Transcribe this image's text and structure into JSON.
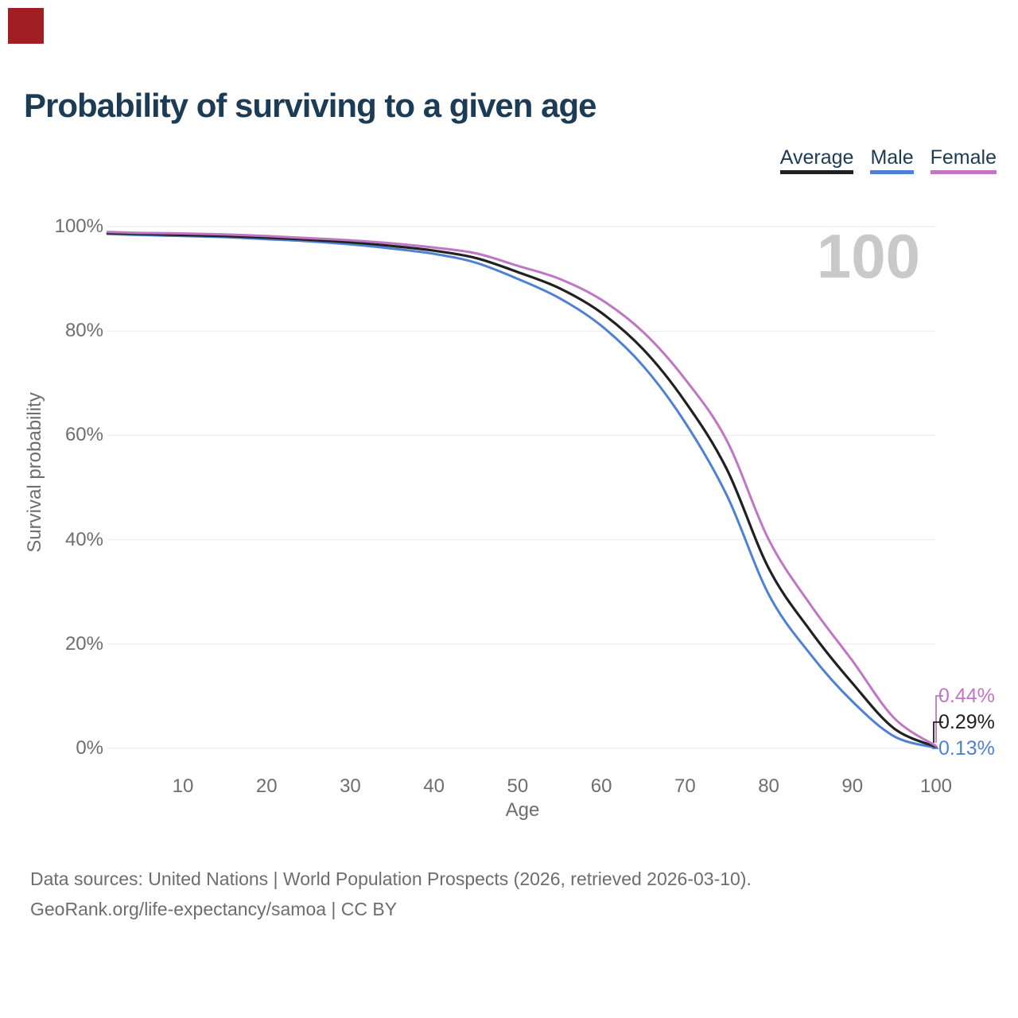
{
  "title": "Probability of surviving to a given age",
  "marker": {
    "color": "#a11e23"
  },
  "legend": {
    "items": [
      {
        "label": "Average",
        "color": "#212121"
      },
      {
        "label": "Male",
        "color": "#4f81d3"
      },
      {
        "label": "Female",
        "color": "#bf76c4"
      }
    ]
  },
  "watermark": "100",
  "footer": {
    "line1": "Data sources: United Nations | World Population Prospects (2026, retrieved 2026-03-10).",
    "line2": "GeoRank.org/life-expectancy/samoa | CC BY"
  },
  "colors": {
    "title_navy": "#1c3b55",
    "axis_gray": "#6e6e6e",
    "gridline": "#e9e9e9",
    "watermark_gray": "#c9c9c9",
    "average_line": "#212121",
    "male_line": "#4f81d3",
    "female_line": "#bf76c4"
  },
  "chart_data": {
    "type": "line",
    "title": "Probability of surviving to a given age",
    "xlabel": "Age",
    "ylabel": "Survival probability",
    "xlim": [
      1,
      100
    ],
    "ylim": [
      0,
      100
    ],
    "grid": "horizontal",
    "legend_position": "top-right",
    "x_tick_values": [
      10,
      20,
      30,
      40,
      50,
      60,
      70,
      80,
      90,
      100
    ],
    "y_tick_labels": [
      "100%",
      "80%",
      "60%",
      "40%",
      "20%",
      "0%"
    ],
    "ages": [
      1,
      5,
      10,
      15,
      20,
      25,
      30,
      35,
      40,
      45,
      50,
      55,
      60,
      65,
      70,
      75,
      80,
      85,
      90,
      95,
      100
    ],
    "series": [
      {
        "name": "Male",
        "color": "#4f81d3",
        "end_label": "0.13%",
        "values": [
          98.6,
          98.4,
          98.2,
          98.0,
          97.6,
          97.2,
          96.6,
          95.8,
          94.8,
          93.1,
          90.0,
          86.3,
          81.0,
          73.3,
          62.5,
          48.5,
          29.5,
          18.0,
          9.0,
          2.3,
          0.13
        ]
      },
      {
        "name": "Average",
        "color": "#212121",
        "end_label": "0.29%",
        "values": [
          98.8,
          98.6,
          98.4,
          98.2,
          97.9,
          97.5,
          97.0,
          96.3,
          95.4,
          94.0,
          91.3,
          88.2,
          83.5,
          76.5,
          66.5,
          53.5,
          34.5,
          22.5,
          12.5,
          3.8,
          0.29
        ]
      },
      {
        "name": "Female",
        "color": "#bf76c4",
        "end_label": "0.44%",
        "values": [
          99.0,
          98.8,
          98.7,
          98.5,
          98.2,
          97.8,
          97.4,
          96.8,
          96.0,
          94.9,
          92.5,
          90.0,
          86.0,
          79.8,
          70.8,
          59.0,
          40.0,
          27.5,
          16.8,
          5.8,
          0.44
        ]
      }
    ]
  }
}
